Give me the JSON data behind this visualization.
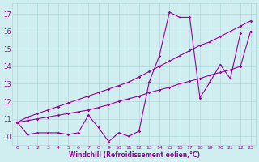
{
  "xlabel": "Windchill (Refroidissement éolien,°C)",
  "bg_color": "#d0eef0",
  "line_color": "#990099",
  "grid_color": "#b0d8dc",
  "x_min": -0.5,
  "x_max": 23.5,
  "y_min": 9.5,
  "y_max": 17.6,
  "yticks": [
    10,
    11,
    12,
    13,
    14,
    15,
    16,
    17
  ],
  "xticks": [
    0,
    1,
    2,
    3,
    4,
    5,
    6,
    7,
    8,
    9,
    10,
    11,
    12,
    13,
    14,
    15,
    16,
    17,
    18,
    19,
    20,
    21,
    22,
    23
  ],
  "series": [
    {
      "x": [
        0,
        1,
        2,
        3,
        4,
        5,
        6,
        7,
        8,
        9,
        10,
        11,
        12,
        13,
        14,
        15,
        16,
        17,
        18,
        19,
        20,
        21,
        22
      ],
      "y": [
        10.8,
        10.1,
        10.2,
        10.2,
        10.2,
        10.1,
        10.2,
        11.2,
        10.5,
        9.7,
        10.2,
        10.0,
        10.3,
        13.1,
        14.6,
        17.1,
        16.8,
        16.8,
        12.2,
        13.1,
        14.1,
        13.3,
        15.9
      ]
    },
    {
      "x": [
        0,
        1,
        2,
        3,
        4,
        5,
        6,
        7,
        8,
        9,
        10,
        11,
        12,
        13,
        14,
        15,
        16,
        17,
        18,
        19,
        20,
        21,
        22,
        23
      ],
      "y": [
        10.8,
        10.9,
        11.0,
        11.1,
        11.2,
        11.3,
        11.4,
        11.5,
        11.65,
        11.8,
        12.0,
        12.15,
        12.3,
        12.5,
        12.65,
        12.8,
        13.0,
        13.15,
        13.3,
        13.5,
        13.65,
        13.8,
        14.0,
        16.0
      ]
    },
    {
      "x": [
        0,
        1,
        2,
        3,
        4,
        5,
        6,
        7,
        8,
        9,
        10,
        11,
        12,
        13,
        14,
        15,
        16,
        17,
        18,
        19,
        20,
        21,
        22,
        23
      ],
      "y": [
        10.8,
        11.1,
        11.3,
        11.5,
        11.7,
        11.9,
        12.1,
        12.3,
        12.5,
        12.7,
        12.9,
        13.1,
        13.4,
        13.7,
        14.0,
        14.3,
        14.6,
        14.9,
        15.2,
        15.4,
        15.7,
        16.0,
        16.3,
        16.6
      ]
    }
  ]
}
